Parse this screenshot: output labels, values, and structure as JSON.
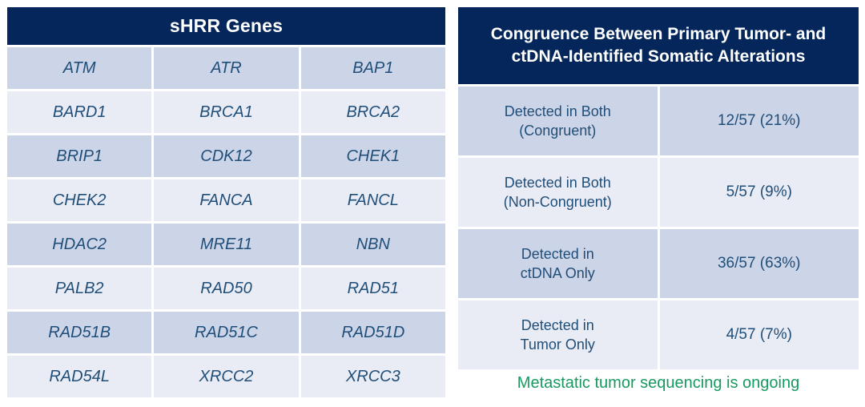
{
  "left_table": {
    "title": "sHRR Genes",
    "genes": [
      [
        "ATM",
        "ATR",
        "BAP1"
      ],
      [
        "BARD1",
        "BRCA1",
        "BRCA2"
      ],
      [
        "BRIP1",
        "CDK12",
        "CHEK1"
      ],
      [
        "CHEK2",
        "FANCA",
        "FANCL"
      ],
      [
        "HDAC2",
        "MRE11",
        "NBN"
      ],
      [
        "PALB2",
        "RAD50",
        "RAD51"
      ],
      [
        "RAD51B",
        "RAD51C",
        "RAD51D"
      ],
      [
        "RAD54L",
        "XRCC2",
        "XRCC3"
      ]
    ]
  },
  "right_table": {
    "title_line1": "Congruence Between Primary Tumor- and",
    "title_line2": "ctDNA-Identified Somatic Alterations",
    "rows": [
      {
        "label_line1": "Detected in Both",
        "label_line2": "(Congruent)",
        "value": "12/57 (21%)"
      },
      {
        "label_line1": "Detected in Both",
        "label_line2": "(Non-Congruent)",
        "value": "5/57 (9%)"
      },
      {
        "label_line1": "Detected in",
        "label_line2": "ctDNA Only",
        "value": "36/57 (63%)"
      },
      {
        "label_line1": "Detected in",
        "label_line2": "Tumor Only",
        "value": "4/57 (7%)"
      }
    ]
  },
  "note": "Metastatic tumor sequencing is ongoing",
  "colors": {
    "header_navy": "#04265a",
    "row_dark": "#ccd4e8",
    "row_light": "#e9ecf5",
    "cell_text": "#1f4e79",
    "note_green": "#179a60",
    "header_text": "#ffffff"
  }
}
